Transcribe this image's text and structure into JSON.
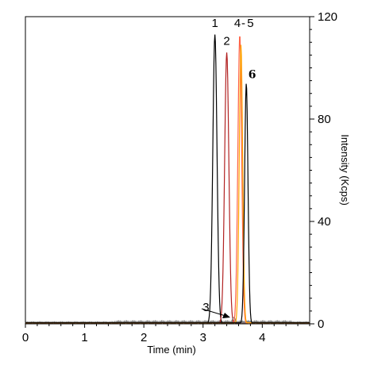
{
  "chart_data": {
    "type": "line",
    "xlabel": "Time (min)",
    "ylabel": "Intensity (Kcps)",
    "xlim": [
      0,
      4.8
    ],
    "ylim": [
      0,
      120
    ],
    "x_ticks": [
      0,
      1,
      2,
      3,
      4
    ],
    "y_ticks": [
      0,
      40,
      80,
      120
    ],
    "y_axis_side": "right",
    "grid": false,
    "legend": "none",
    "series": [
      {
        "color": "#000000",
        "peak_time": 3.2,
        "peak_height": 113,
        "width": 0.05
      },
      {
        "color": "#b22222",
        "peak_time": 3.4,
        "peak_height": 106,
        "width": 0.05
      },
      {
        "color": "#7f7f7f",
        "peak_time": 3.52,
        "peak_height": 2.5,
        "width": 0.04
      },
      {
        "color": "#ff6347",
        "peak_time": 3.62,
        "peak_height": 113,
        "width": 0.045
      },
      {
        "color": "#ffa500",
        "peak_time": 3.64,
        "peak_height": 109,
        "width": 0.04
      },
      {
        "color": "#000000",
        "peak_time": 3.73,
        "peak_height": 94,
        "width": 0.04
      }
    ],
    "annotations": [
      {
        "text": "1",
        "x": 3.2,
        "y": 116
      },
      {
        "text": "2",
        "x": 3.4,
        "y": 109
      },
      {
        "text": "3",
        "x": 3.05,
        "y": 5
      },
      {
        "text": "4",
        "x": 3.58,
        "y": 116
      },
      {
        "text": "-",
        "x": 3.68,
        "y": 116
      },
      {
        "text": "5",
        "x": 3.8,
        "y": 116
      },
      {
        "text": "6",
        "x": 3.83,
        "y": 96
      }
    ]
  }
}
